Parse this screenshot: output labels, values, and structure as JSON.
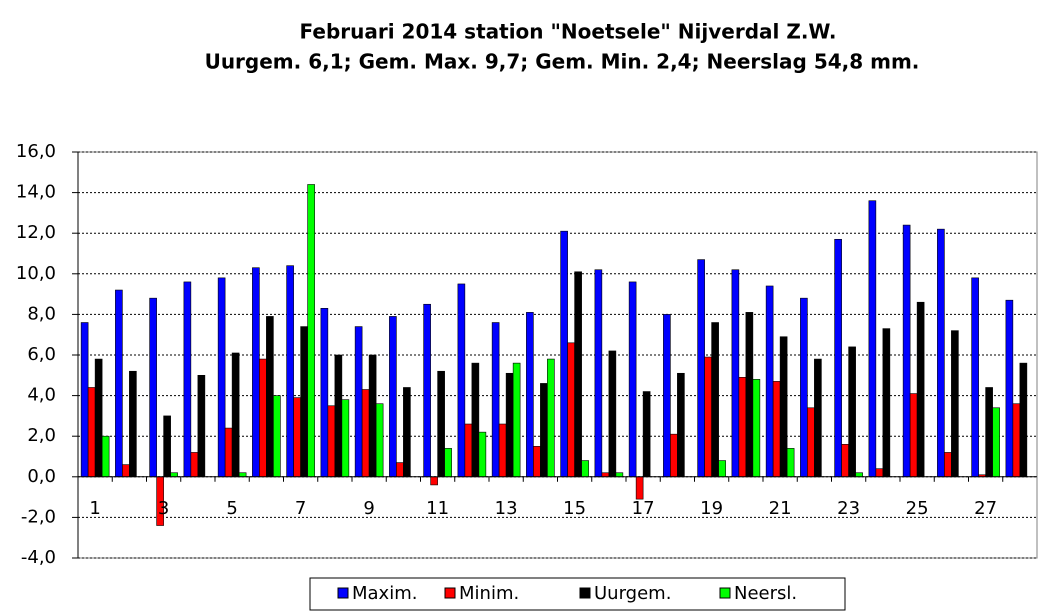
{
  "chart_data": {
    "type": "bar",
    "title": "Februari 2014 station \"Noetsele\" Nijverdal Z.W.",
    "subtitle": "Uurgem. 6,1; Gem. Max. 9,7; Gem. Min. 2,4; Neerslag 54,8 mm.",
    "categories": [
      "1",
      null,
      "3",
      null,
      "5",
      null,
      "7",
      null,
      "9",
      null,
      "11",
      null,
      "13",
      null,
      "15",
      null,
      "17",
      null,
      "19",
      null,
      "21",
      null,
      "23",
      null,
      "25",
      null,
      "27",
      null
    ],
    "series": [
      {
        "name": "Maxim.",
        "color": "#0000ff",
        "values": [
          7.6,
          9.2,
          8.8,
          9.6,
          9.8,
          10.3,
          10.4,
          8.3,
          7.4,
          7.9,
          8.5,
          9.5,
          7.6,
          8.1,
          12.1,
          10.2,
          9.6,
          8.0,
          10.7,
          10.2,
          9.4,
          8.8,
          11.7,
          13.6,
          12.4,
          12.2,
          9.8,
          8.7
        ]
      },
      {
        "name": "Minim.",
        "color": "#ff0000",
        "values": [
          4.4,
          0.6,
          -2.4,
          1.2,
          2.4,
          5.8,
          3.9,
          3.5,
          4.3,
          0.7,
          -0.4,
          2.6,
          2.6,
          1.5,
          6.6,
          0.2,
          -1.1,
          2.1,
          5.9,
          4.9,
          4.7,
          3.4,
          1.6,
          0.4,
          4.1,
          1.2,
          0.1,
          3.6
        ]
      },
      {
        "name": "Uurgem.",
        "color": "#000000",
        "values": [
          5.8,
          5.2,
          3.0,
          5.0,
          6.1,
          7.9,
          7.4,
          6.0,
          6.0,
          4.4,
          5.2,
          5.6,
          5.1,
          4.6,
          10.1,
          6.2,
          4.2,
          5.1,
          7.6,
          8.1,
          6.9,
          5.8,
          6.4,
          7.3,
          8.6,
          7.2,
          4.4,
          5.6
        ]
      },
      {
        "name": "Neersl.",
        "color": "#00ff00",
        "values": [
          2.0,
          0,
          0.2,
          0,
          0.2,
          4.0,
          14.4,
          3.8,
          3.6,
          0,
          1.4,
          2.2,
          5.6,
          5.8,
          0.8,
          0.2,
          0,
          0,
          0.8,
          4.8,
          1.4,
          0,
          0.2,
          0,
          0,
          0,
          3.4,
          0
        ]
      }
    ],
    "ylim": [
      -4,
      16
    ],
    "yticks": [
      {
        "value": -4,
        "label": "-4,0"
      },
      {
        "value": -2,
        "label": "-2,0"
      },
      {
        "value": 0,
        "label": "0,0"
      },
      {
        "value": 2,
        "label": "2,0"
      },
      {
        "value": 4,
        "label": "4,0"
      },
      {
        "value": 6,
        "label": "6,0"
      },
      {
        "value": 8,
        "label": "8,0"
      },
      {
        "value": 10,
        "label": "10,0"
      },
      {
        "value": 12,
        "label": "12,0"
      },
      {
        "value": 14,
        "label": "14,0"
      },
      {
        "value": 16,
        "label": "16,0"
      }
    ],
    "grid": true,
    "legend": "bottom"
  }
}
